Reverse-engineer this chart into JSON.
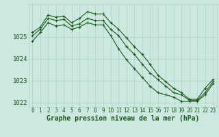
{
  "title": "Graphe pression niveau de la mer (hPa)",
  "background_color": "#cce8e0",
  "grid_color": "#aad4c8",
  "line_color": "#1a5c1a",
  "x_labels": [
    "0",
    "1",
    "2",
    "3",
    "4",
    "5",
    "6",
    "7",
    "8",
    "9",
    "10",
    "11",
    "12",
    "13",
    "14",
    "15",
    "16",
    "17",
    "18",
    "19",
    "20",
    "21",
    "22",
    "23"
  ],
  "x_values": [
    0,
    1,
    2,
    3,
    4,
    5,
    6,
    7,
    8,
    9,
    10,
    11,
    12,
    13,
    14,
    15,
    16,
    17,
    18,
    19,
    20,
    21,
    22,
    23
  ],
  "line1": [
    1024.8,
    1025.2,
    1025.65,
    1025.5,
    1025.55,
    1025.35,
    1025.45,
    1025.65,
    1025.55,
    1025.55,
    1025.05,
    1024.45,
    1023.95,
    1023.55,
    1023.15,
    1022.75,
    1022.45,
    1022.35,
    1022.25,
    1022.05,
    1022.05,
    1022.05,
    1022.35,
    1022.85
  ],
  "line2": [
    1025.05,
    1025.35,
    1025.85,
    1025.75,
    1025.8,
    1025.5,
    1025.6,
    1025.85,
    1025.75,
    1025.75,
    1025.35,
    1025.05,
    1024.55,
    1024.2,
    1023.75,
    1023.35,
    1023.05,
    1022.75,
    1022.45,
    1022.35,
    1022.1,
    1022.1,
    1022.45,
    1022.95
  ],
  "line3": [
    1025.2,
    1025.45,
    1026.0,
    1025.9,
    1025.95,
    1025.65,
    1025.85,
    1026.15,
    1026.05,
    1026.05,
    1025.65,
    1025.35,
    1024.95,
    1024.55,
    1024.2,
    1023.75,
    1023.25,
    1022.95,
    1022.65,
    1022.45,
    1022.15,
    1022.15,
    1022.65,
    1023.05
  ],
  "ylim": [
    1021.8,
    1026.5
  ],
  "yticks": [
    1022,
    1023,
    1024,
    1025
  ],
  "ylabel_fontsize": 6.5,
  "xlabel_fontsize": 5.5,
  "title_fontsize": 7.0,
  "marker": "+",
  "markersize": 3.5,
  "linewidth": 0.8
}
